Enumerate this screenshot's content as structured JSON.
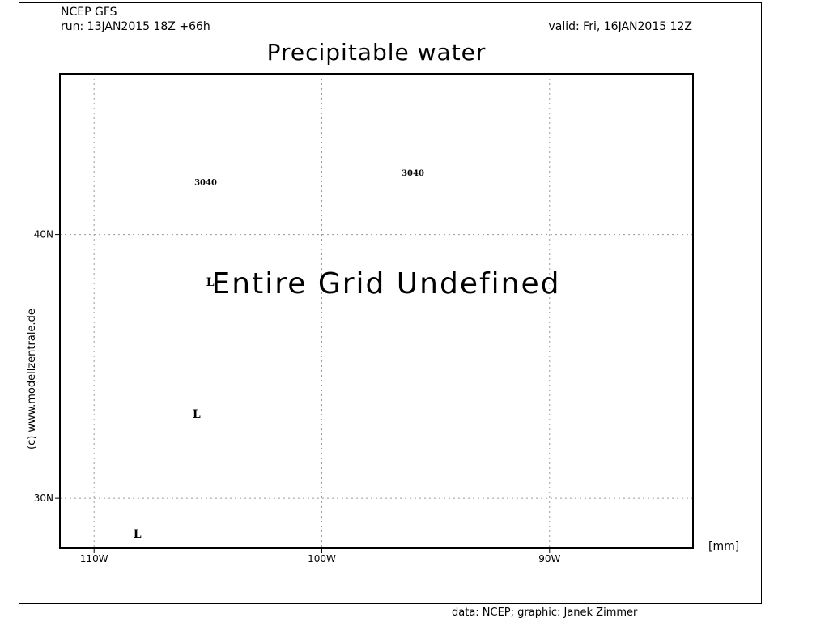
{
  "header": {
    "model": "NCEP GFS",
    "run": "run: 13JAN2015 18Z +66h",
    "valid": "valid: Fri, 16JAN2015 12Z"
  },
  "title": "Precipitable water",
  "message": "Entire Grid Undefined",
  "units_label": "[mm]",
  "side_credit": "(c)  www.modellzentrale.de",
  "footer_credit": "data: NCEP; graphic: Janek Zimmer",
  "map": {
    "lon_range": [
      -111.5,
      -83.7
    ],
    "lat_range": [
      28.1,
      46.1
    ],
    "grid": "dotted",
    "lon_ticks": [
      {
        "value": -110,
        "label": "110W"
      },
      {
        "value": -100,
        "label": "100W"
      },
      {
        "value": -90,
        "label": "90W"
      }
    ],
    "lat_ticks": [
      {
        "value": 40,
        "label": "40N"
      },
      {
        "value": 30,
        "label": "30N"
      }
    ],
    "contour_labels": [
      {
        "text": "3040",
        "lon": -105.1,
        "lat": 42.0
      },
      {
        "text": "3040",
        "lon": -96.0,
        "lat": 42.35
      }
    ],
    "lows": [
      {
        "text": "L",
        "lon": -104.9,
        "lat": 38.2
      },
      {
        "text": "L",
        "lon": -105.5,
        "lat": 33.2
      },
      {
        "text": "L",
        "lon": -108.1,
        "lat": 28.65
      }
    ]
  }
}
